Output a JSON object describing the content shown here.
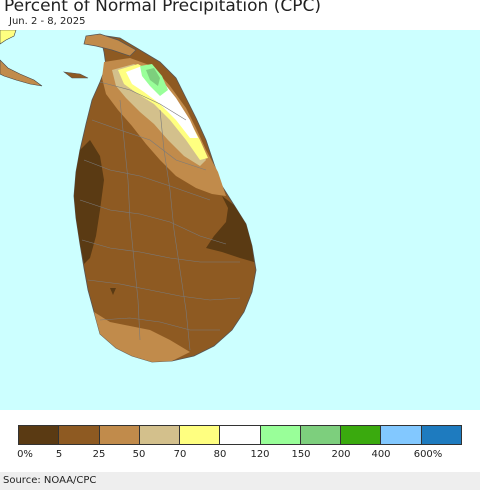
{
  "header": {
    "title": "Percent of Normal Precipitation (CPC)",
    "date_range": "Jun. 2 - 8, 2025"
  },
  "map": {
    "region_label": "",
    "ocean_color": "#ccffff",
    "dominant_category": "5-25%",
    "notes_visible": ""
  },
  "legend": {
    "colors": [
      "#5a3a13",
      "#8e5a22",
      "#c18b4b",
      "#d3c08c",
      "#ffff80",
      "#ffffff",
      "#99ff99",
      "#7dcf7d",
      "#3aaa0e",
      "#82c8ff",
      "#1e7bbf"
    ],
    "labels": [
      "0%",
      "5",
      "25",
      "50",
      "70",
      "80",
      "120",
      "150",
      "200",
      "400",
      "600%"
    ]
  },
  "footer": {
    "source": "Source: NOAA/CPC"
  }
}
